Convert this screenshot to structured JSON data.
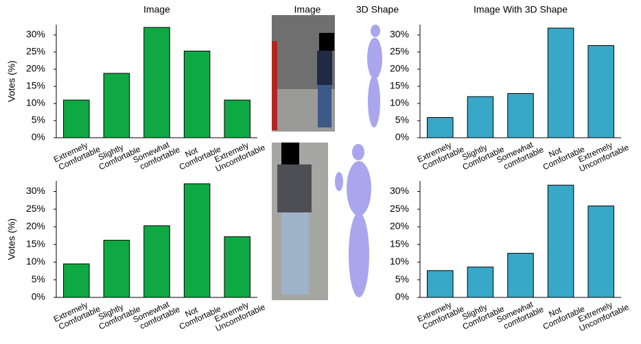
{
  "middle_column": {
    "image_label": "Image",
    "shape_label": "3D Shape"
  },
  "chart_data": [
    {
      "type": "bar",
      "title": "Image",
      "ylabel": "Votes (%)",
      "categories": [
        [
          "Extremely",
          "Comfortable"
        ],
        [
          "Slightly",
          "Comfortable"
        ],
        [
          "Somewhat",
          "comfortable"
        ],
        [
          "Not",
          "Comfortable"
        ],
        [
          "Extremely",
          "Uncomfortable"
        ]
      ],
      "values": [
        11.0,
        18.8,
        32.2,
        25.3,
        11.0
      ],
      "color": "#0fa944",
      "ylim": [
        0,
        33
      ],
      "yticks": [
        {
          "value": 0,
          "label": "0%"
        },
        {
          "value": 5,
          "label": "5%"
        },
        {
          "value": 10,
          "label": "10%"
        },
        {
          "value": 15,
          "label": "15%"
        },
        {
          "value": 20,
          "label": "20%"
        },
        {
          "value": 25,
          "label": "25%"
        },
        {
          "value": 30,
          "label": "30%"
        }
      ]
    },
    {
      "type": "bar",
      "title": "Image With 3D  Shape",
      "categories": [
        [
          "Extremely",
          "Comfortable"
        ],
        [
          "Slightly",
          "Comfortable"
        ],
        [
          "Somewhat",
          "comfortable"
        ],
        [
          "Not",
          "Comfortable"
        ],
        [
          "Extremely",
          "Uncomfortable"
        ]
      ],
      "values": [
        5.9,
        12.0,
        12.9,
        32.0,
        26.9
      ],
      "color": "#38a8c8",
      "ylim": [
        0,
        33
      ],
      "yticks": [
        {
          "value": 0,
          "label": "0%"
        },
        {
          "value": 5,
          "label": "5%"
        },
        {
          "value": 10,
          "label": "10%"
        },
        {
          "value": 15,
          "label": "15%"
        },
        {
          "value": 20,
          "label": "20%"
        },
        {
          "value": 25,
          "label": "25%"
        },
        {
          "value": 30,
          "label": "30%"
        }
      ]
    },
    {
      "type": "bar",
      "ylabel": "Votes (%)",
      "categories": [
        [
          "Extremely",
          "Comfortable"
        ],
        [
          "Slightly",
          "Comfortable"
        ],
        [
          "Somewhat",
          "comfortable"
        ],
        [
          "Not",
          "Comfortable"
        ],
        [
          "Extremely",
          "Uncomfortable"
        ]
      ],
      "values": [
        9.5,
        16.2,
        20.3,
        32.2,
        17.2
      ],
      "color": "#0fa944",
      "ylim": [
        0,
        33
      ],
      "yticks": [
        {
          "value": 0,
          "label": "0%"
        },
        {
          "value": 5,
          "label": "5%"
        },
        {
          "value": 10,
          "label": "10%"
        },
        {
          "value": 15,
          "label": "15%"
        },
        {
          "value": 20,
          "label": "20%"
        },
        {
          "value": 25,
          "label": "25%"
        },
        {
          "value": 30,
          "label": "30%"
        }
      ]
    },
    {
      "type": "bar",
      "categories": [
        [
          "Extremely",
          "Comfortable"
        ],
        [
          "Slightly",
          "Comfortable"
        ],
        [
          "Somewhat",
          "comfortable"
        ],
        [
          "Not",
          "Comfortable"
        ],
        [
          "Extremely",
          "Uncomfortable"
        ]
      ],
      "values": [
        7.6,
        8.6,
        12.5,
        31.8,
        25.9
      ],
      "color": "#38a8c8",
      "ylim": [
        0,
        33
      ],
      "yticks": [
        {
          "value": 0,
          "label": "0%"
        },
        {
          "value": 5,
          "label": "5%"
        },
        {
          "value": 10,
          "label": "10%"
        },
        {
          "value": 15,
          "label": "15%"
        },
        {
          "value": 20,
          "label": "20%"
        },
        {
          "value": 25,
          "label": "25%"
        },
        {
          "value": 30,
          "label": "30%"
        }
      ]
    }
  ]
}
